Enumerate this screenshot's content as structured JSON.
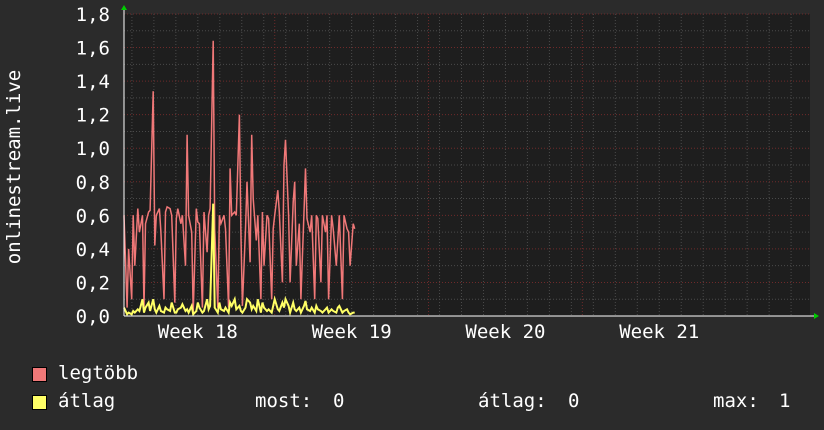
{
  "chart_data": {
    "type": "line",
    "ylabel": "onlinestream.live",
    "ylim": [
      0,
      1.8
    ],
    "yticks": [
      "0,0",
      "0,2",
      "0,4",
      "0,6",
      "0,8",
      "1,0",
      "1,2",
      "1,4",
      "1,6",
      "1,8"
    ],
    "yticks_values": [
      0,
      0.2,
      0.4,
      0.6,
      0.8,
      1.0,
      1.2,
      1.4,
      1.6,
      1.8
    ],
    "xticks": [
      "Week 18",
      "Week 19",
      "Week 20",
      "Week 21"
    ],
    "xticks_pos": [
      18,
      19,
      20,
      21
    ],
    "xlim": [
      17.52,
      21.98
    ],
    "grid": true,
    "colors": {
      "background": "#2b2b2b",
      "canvas": "#1e1e1e",
      "grid_major": "#6e2a2a",
      "grid_minor": "#4a4a4a",
      "axis": "#ffffff",
      "arrow": "#00cc00"
    },
    "series": [
      {
        "name": "legtöbb",
        "color": "#f07878",
        "x": [
          17.52,
          17.54,
          17.55,
          17.57,
          17.58,
          17.59,
          17.61,
          17.62,
          17.64,
          17.65,
          17.66,
          17.68,
          17.69,
          17.71,
          17.72,
          17.73,
          17.75,
          17.76,
          17.78,
          17.79,
          17.8,
          17.82,
          17.83,
          17.85,
          17.86,
          17.87,
          17.89,
          17.9,
          17.92,
          17.93,
          17.94,
          17.96,
          17.97,
          17.99,
          18.0,
          18.01,
          18.03,
          18.04,
          18.06,
          18.07,
          18.08,
          18.1,
          18.11,
          18.13,
          18.14,
          18.15,
          18.17,
          18.18,
          18.2,
          18.21,
          18.22,
          18.24,
          18.25,
          18.27,
          18.28,
          18.29,
          18.31,
          18.32,
          18.34,
          18.35,
          18.36,
          18.38,
          18.39,
          18.41,
          18.42,
          18.43,
          18.45,
          18.46,
          18.48,
          18.49,
          18.5,
          18.52,
          18.53,
          18.55,
          18.56,
          18.57,
          18.59,
          18.6,
          18.62,
          18.63,
          18.64,
          18.66,
          18.67,
          18.69,
          18.7,
          18.71,
          18.73,
          18.74,
          18.76,
          18.77,
          18.78,
          18.8,
          18.81,
          18.83,
          18.84,
          18.85,
          18.87,
          18.88,
          18.9,
          18.91,
          18.92,
          18.94,
          18.95,
          18.97,
          18.98,
          18.99,
          19.01,
          19.02
        ],
        "values": [
          0.6,
          0.05,
          0.4,
          0.1,
          0.6,
          0.3,
          0.64,
          0.5,
          0.6,
          0.05,
          0.55,
          0.62,
          0.63,
          1.34,
          0.42,
          0.6,
          0.64,
          0.5,
          0.1,
          0.62,
          0.65,
          0.64,
          0.6,
          0.08,
          0.58,
          0.64,
          0.55,
          0.6,
          0.3,
          1.08,
          0.6,
          0.5,
          0.02,
          0.64,
          0.56,
          0.55,
          0.05,
          0.62,
          0.38,
          0.6,
          0.64,
          1.64,
          0.52,
          0.05,
          0.6,
          0.55,
          0.6,
          0.52,
          0.05,
          0.88,
          0.6,
          0.62,
          0.6,
          1.2,
          0.5,
          0.06,
          0.52,
          0.8,
          0.32,
          1.08,
          0.7,
          0.45,
          0.6,
          0.1,
          0.62,
          0.3,
          0.6,
          0.58,
          0.1,
          0.52,
          0.6,
          0.75,
          0.62,
          0.2,
          0.9,
          1.05,
          0.6,
          0.2,
          0.68,
          0.8,
          0.3,
          0.55,
          0.1,
          0.62,
          0.88,
          0.58,
          0.5,
          0.6,
          0.1,
          0.6,
          0.58,
          0.2,
          0.6,
          0.5,
          0.6,
          0.1,
          0.6,
          0.52,
          0.3,
          0.45,
          0.6,
          0.1,
          0.6,
          0.52,
          0.5,
          0.3,
          0.55,
          0.52
        ]
      },
      {
        "name": "átlag",
        "color": "#ffff66",
        "x": [
          17.52,
          17.54,
          17.55,
          17.57,
          17.58,
          17.59,
          17.61,
          17.62,
          17.64,
          17.65,
          17.66,
          17.68,
          17.69,
          17.71,
          17.72,
          17.73,
          17.75,
          17.76,
          17.78,
          17.79,
          17.8,
          17.82,
          17.83,
          17.85,
          17.86,
          17.87,
          17.89,
          17.9,
          17.92,
          17.93,
          17.94,
          17.96,
          17.97,
          17.99,
          18.0,
          18.01,
          18.03,
          18.04,
          18.06,
          18.07,
          18.08,
          18.1,
          18.11,
          18.13,
          18.14,
          18.15,
          18.17,
          18.18,
          18.2,
          18.21,
          18.22,
          18.24,
          18.25,
          18.27,
          18.28,
          18.29,
          18.31,
          18.32,
          18.34,
          18.35,
          18.36,
          18.38,
          18.39,
          18.41,
          18.42,
          18.43,
          18.45,
          18.46,
          18.48,
          18.49,
          18.5,
          18.52,
          18.53,
          18.55,
          18.56,
          18.57,
          18.59,
          18.6,
          18.62,
          18.63,
          18.64,
          18.66,
          18.67,
          18.69,
          18.7,
          18.71,
          18.73,
          18.74,
          18.76,
          18.77,
          18.78,
          18.8,
          18.81,
          18.83,
          18.84,
          18.85,
          18.87,
          18.88,
          18.9,
          18.91,
          18.92,
          18.94,
          18.95,
          18.97,
          18.98,
          18.99,
          19.01,
          19.02
        ],
        "values": [
          0.05,
          0.01,
          0.02,
          0.01,
          0.03,
          0.02,
          0.04,
          0.03,
          0.1,
          0.02,
          0.05,
          0.08,
          0.03,
          0.1,
          0.04,
          0.02,
          0.06,
          0.03,
          0.02,
          0.05,
          0.04,
          0.03,
          0.08,
          0.02,
          0.02,
          0.04,
          0.05,
          0.07,
          0.03,
          0.04,
          0.02,
          0.06,
          0.01,
          0.03,
          0.08,
          0.05,
          0.02,
          0.03,
          0.1,
          0.04,
          0.06,
          0.67,
          0.05,
          0.02,
          0.08,
          0.04,
          0.03,
          0.05,
          0.02,
          0.08,
          0.06,
          0.1,
          0.04,
          0.06,
          0.03,
          0.02,
          0.05,
          0.1,
          0.08,
          0.04,
          0.06,
          0.03,
          0.1,
          0.02,
          0.08,
          0.05,
          0.03,
          0.04,
          0.02,
          0.06,
          0.1,
          0.04,
          0.03,
          0.08,
          0.05,
          0.1,
          0.06,
          0.02,
          0.08,
          0.04,
          0.03,
          0.05,
          0.02,
          0.06,
          0.09,
          0.04,
          0.03,
          0.05,
          0.02,
          0.06,
          0.04,
          0.03,
          0.02,
          0.04,
          0.05,
          0.02,
          0.04,
          0.03,
          0.02,
          0.05,
          0.06,
          0.02,
          0.03,
          0.04,
          0.02,
          0.01,
          0.02,
          0.02
        ]
      }
    ]
  },
  "legend": {
    "items": [
      {
        "label": "legtöbb",
        "color": "#f07878"
      },
      {
        "label": "átlag",
        "color": "#ffff66"
      }
    ],
    "stats": {
      "most_label": "most:",
      "most_value": "0",
      "atlag_label": "átlag:",
      "atlag_value": "0",
      "max_label": "max:",
      "max_value": "1"
    }
  }
}
